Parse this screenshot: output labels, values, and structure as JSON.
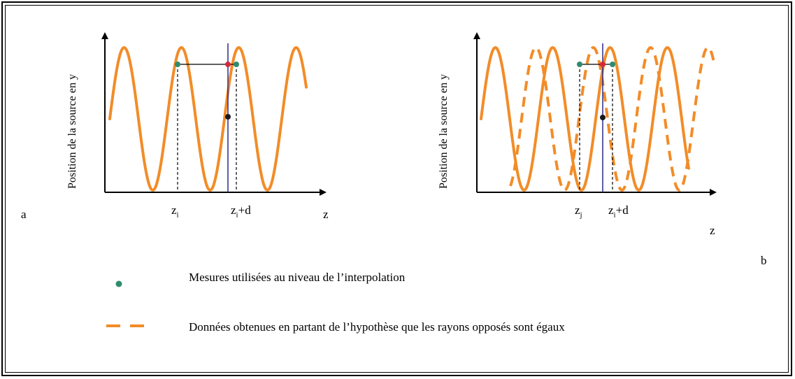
{
  "panel_a": {
    "letter": "a",
    "y_axis_label": "Position de la source en y",
    "x_axis_label": "z",
    "mark_left_base": "z",
    "mark_left_sub": "i",
    "mark_right_base": "z",
    "mark_right_sub": "i",
    "mark_right_suffix": "+d"
  },
  "panel_b": {
    "letter": "b",
    "y_axis_label": "Position de la source en y",
    "x_axis_label": "z",
    "mark_left_base": "z",
    "mark_left_sub": "j",
    "mark_right_base": "z",
    "mark_right_sub": "i",
    "mark_right_suffix": "+d"
  },
  "legend": {
    "measures_label": "Mesures utilisées au niveau de l’interpolation",
    "opposite_rays_label": "Données obtenues en partant de l’hypothèse que les rayons opposés sont égaux"
  },
  "colors": {
    "curve": "#f28c28",
    "measure_dot": "#2e8b6e",
    "interp_dot": "#d42a3a",
    "result_dot": "#1a1a1a",
    "vertical_line": "#2a2a8a"
  }
}
